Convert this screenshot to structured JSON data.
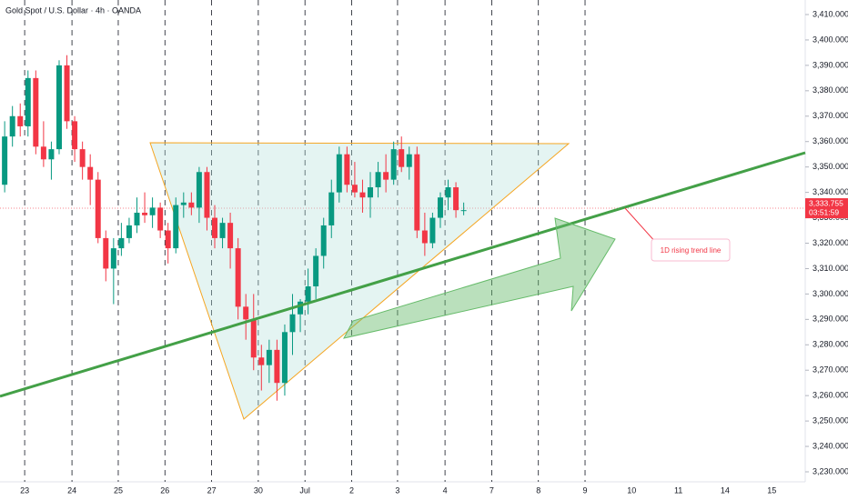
{
  "chart_data": {
    "type": "candlestick",
    "title": "Gold Spot / U.S. Dollar · 4h · OANDA",
    "up_color": "#089981",
    "down_color": "#f23645",
    "x": [
      0,
      1,
      2,
      3,
      4,
      5,
      6,
      7,
      8,
      9,
      10,
      11,
      12,
      13,
      14,
      15,
      16,
      17,
      18,
      19,
      20,
      21,
      22,
      23,
      24,
      25,
      26,
      27,
      28,
      29,
      30,
      31,
      32,
      33,
      34,
      35,
      36,
      37,
      38,
      39,
      40,
      41,
      42,
      43,
      44,
      45,
      46,
      47,
      48,
      49,
      50,
      51,
      52,
      53,
      54,
      55,
      56,
      57,
      58,
      59
    ],
    "open": [
      3343,
      3362,
      3370,
      3366,
      3385,
      3358,
      3353,
      3357,
      3390,
      3368,
      3357,
      3350,
      3345,
      3322,
      3310,
      3318,
      3322,
      3327,
      3332,
      3331,
      3334,
      3325,
      3318,
      3335,
      3336,
      3334,
      3348,
      3330,
      3322,
      3328,
      3318,
      3295,
      3290,
      3275,
      3272,
      3278,
      3265,
      3285,
      3292,
      3297,
      3303,
      3315,
      3327,
      3340,
      3355,
      3343,
      3340,
      3338,
      3342,
      3348,
      3345,
      3357,
      3350,
      3355,
      3325,
      3320,
      3330,
      3338,
      3342,
      3333
    ],
    "high": [
      3368,
      3374,
      3375,
      3388,
      3388,
      3368,
      3360,
      3392,
      3394,
      3370,
      3360,
      3355,
      3348,
      3325,
      3322,
      3328,
      3330,
      3338,
      3340,
      3338,
      3336,
      3328,
      3338,
      3340,
      3340,
      3350,
      3350,
      3335,
      3330,
      3332,
      3322,
      3300,
      3300,
      3280,
      3282,
      3282,
      3288,
      3300,
      3298,
      3310,
      3318,
      3330,
      3345,
      3358,
      3358,
      3352,
      3345,
      3348,
      3352,
      3355,
      3360,
      3362,
      3358,
      3358,
      3332,
      3332,
      3340,
      3345,
      3344,
      3336
    ],
    "low": [
      3340,
      3358,
      3362,
      3362,
      3355,
      3350,
      3345,
      3355,
      3365,
      3352,
      3345,
      3335,
      3320,
      3305,
      3296,
      3315,
      3320,
      3324,
      3328,
      3326,
      3322,
      3312,
      3316,
      3330,
      3331,
      3328,
      3325,
      3318,
      3318,
      3310,
      3290,
      3282,
      3270,
      3262,
      3265,
      3258,
      3260,
      3276,
      3285,
      3292,
      3298,
      3310,
      3322,
      3336,
      3340,
      3338,
      3332,
      3330,
      3338,
      3340,
      3343,
      3348,
      3345,
      3322,
      3315,
      3318,
      3326,
      3333,
      3330,
      3331
    ],
    "close": [
      3362,
      3370,
      3366,
      3385,
      3358,
      3353,
      3357,
      3390,
      3368,
      3357,
      3350,
      3345,
      3322,
      3310,
      3318,
      3322,
      3327,
      3332,
      3331,
      3334,
      3325,
      3318,
      3335,
      3336,
      3334,
      3348,
      3330,
      3322,
      3328,
      3318,
      3295,
      3290,
      3275,
      3272,
      3278,
      3265,
      3285,
      3292,
      3297,
      3303,
      3315,
      3327,
      3340,
      3355,
      3343,
      3340,
      3338,
      3342,
      3348,
      3345,
      3357,
      3350,
      3355,
      3325,
      3320,
      3330,
      3338,
      3342,
      3333,
      3333
    ],
    "xlim": [
      -0.6,
      102.9
    ],
    "xticks": [
      {
        "value": 2.57,
        "label": "23"
      },
      {
        "value": 8.65,
        "label": "24"
      },
      {
        "value": 14.6,
        "label": "25"
      },
      {
        "value": 20.6,
        "label": "26"
      },
      {
        "value": 26.6,
        "label": "27"
      },
      {
        "value": 32.6,
        "label": "30"
      },
      {
        "value": 38.6,
        "label": "Jul"
      },
      {
        "value": 44.6,
        "label": "2"
      },
      {
        "value": 50.5,
        "label": "3"
      },
      {
        "value": 56.6,
        "label": "4"
      },
      {
        "value": 62.6,
        "label": "7"
      },
      {
        "value": 68.6,
        "label": "8"
      },
      {
        "value": 74.6,
        "label": "9"
      },
      {
        "value": 80.6,
        "label": "10"
      },
      {
        "value": 86.6,
        "label": "11"
      },
      {
        "value": 92.6,
        "label": "14"
      },
      {
        "value": 98.6,
        "label": "15"
      }
    ],
    "ylim": [
      3230,
      3410
    ],
    "yticks": [
      {
        "value": 3230,
        "label": "3,230.000"
      },
      {
        "value": 3240,
        "label": "3,240.000"
      },
      {
        "value": 3250,
        "label": "3,250.000"
      },
      {
        "value": 3260,
        "label": "3,260.000"
      },
      {
        "value": 3270,
        "label": "3,270.000"
      },
      {
        "value": 3280,
        "label": "3,280.000"
      },
      {
        "value": 3290,
        "label": "3,290.000"
      },
      {
        "value": 3300,
        "label": "3,300.000"
      },
      {
        "value": 3310,
        "label": "3,310.000"
      },
      {
        "value": 3320,
        "label": "3,320.000"
      },
      {
        "value": 3330,
        "label": "3,330.000"
      },
      {
        "value": 3340,
        "label": "3,340.000"
      },
      {
        "value": 3350,
        "label": "3,350.000"
      },
      {
        "value": 3360,
        "label": "3,360.000"
      },
      {
        "value": 3370,
        "label": "3,370.000"
      },
      {
        "value": 3380,
        "label": "3,380.000"
      },
      {
        "value": 3390,
        "label": "3,390.000"
      },
      {
        "value": 3400,
        "label": "3,400.000"
      },
      {
        "value": 3410,
        "label": "3,410.000"
      }
    ],
    "last_price": {
      "value": 3333.755,
      "label": "3,333.755"
    },
    "countdown": "03:51:59",
    "annotation": "1D rising trend line"
  }
}
